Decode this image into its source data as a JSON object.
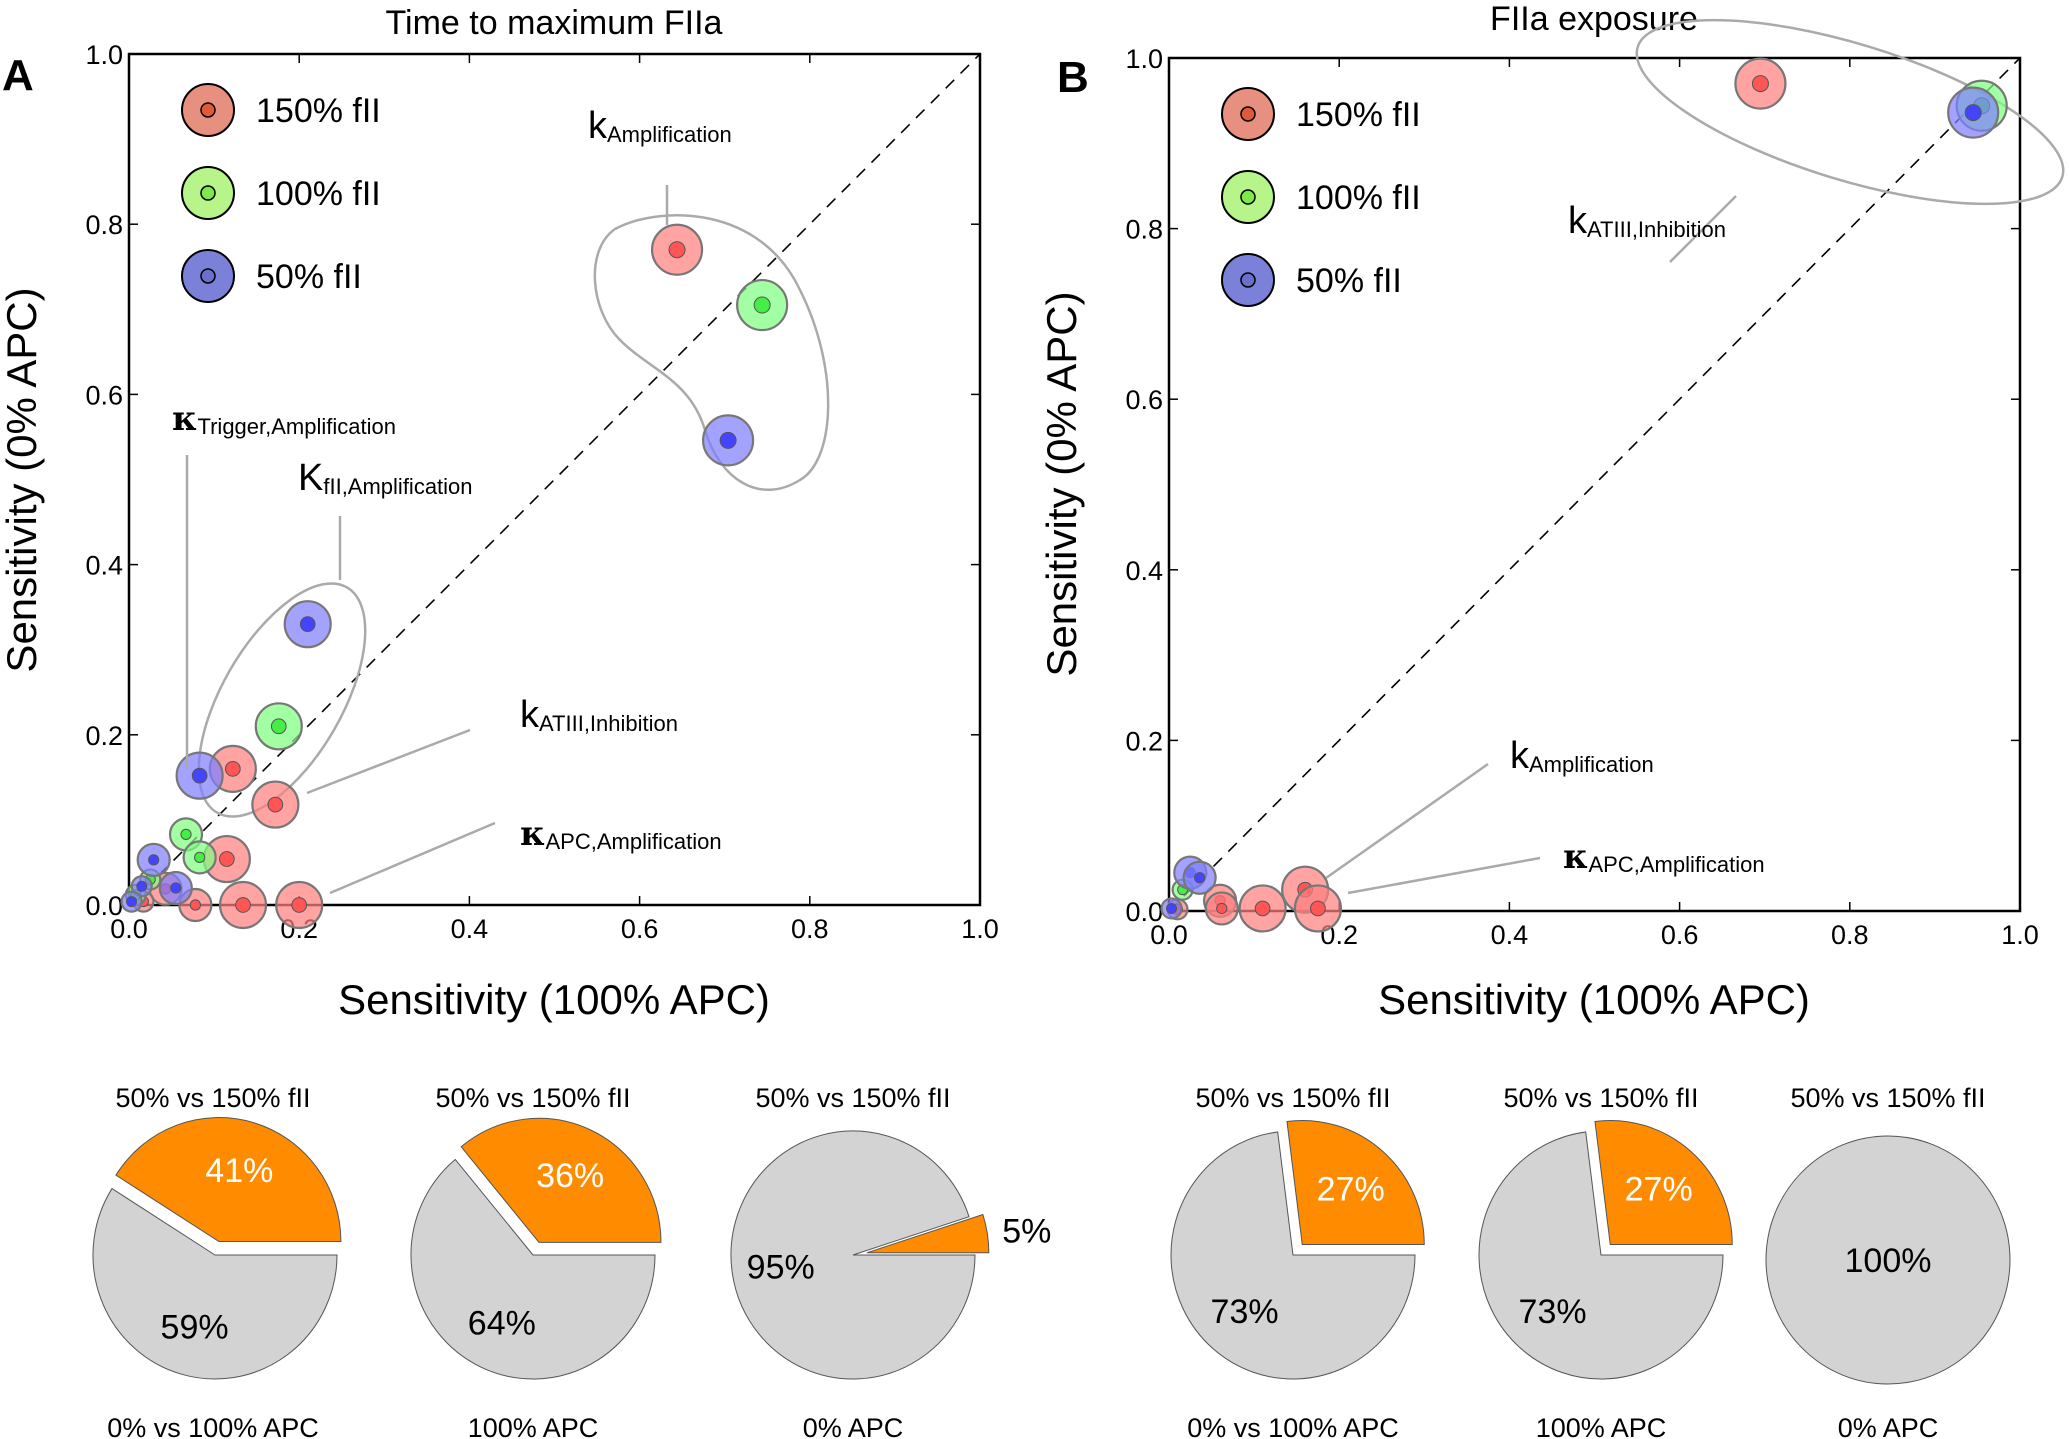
{
  "chart_data": [
    {
      "type": "scatter",
      "panel": "A",
      "title": "Time to maximum FIIa",
      "xlabel": "Sensitivity (100% APC)",
      "ylabel": "Sensitivity (0% APC)",
      "xlim": [
        0.0,
        1.0
      ],
      "ylim": [
        0.0,
        1.0
      ],
      "xticks": [
        "0.0",
        "0.2",
        "0.4",
        "0.6",
        "0.8",
        "1.0"
      ],
      "yticks": [
        "0.0",
        "0.2",
        "0.4",
        "0.6",
        "0.8",
        "1.0"
      ],
      "diagonal": "dashed y=x",
      "legend": {
        "placement": "top-left",
        "entries": [
          {
            "label": "150% fII",
            "color": "#e8907f",
            "inner": "#e05a3a"
          },
          {
            "label": "100% fII",
            "color": "#b7f58a",
            "inner": "#7fe84a"
          },
          {
            "label": "50% fII",
            "color": "#7b80d9",
            "inner": "#6a6fcc"
          }
        ]
      },
      "series": [
        {
          "name": "150% fII",
          "color": "#ff5555",
          "points": [
            [
              0.644,
              0.77
            ],
            [
              0.122,
              0.16
            ],
            [
              0.172,
              0.118
            ],
            [
              0.115,
              0.054
            ],
            [
              0.043,
              0.019
            ],
            [
              0.078,
              0.0
            ],
            [
              0.134,
              0.0
            ],
            [
              0.2,
              0.0
            ],
            [
              0.017,
              0.004
            ]
          ]
        },
        {
          "name": "100% fII",
          "color": "#44ee44",
          "points": [
            [
              0.744,
              0.705
            ],
            [
              0.176,
              0.21
            ],
            [
              0.067,
              0.083
            ],
            [
              0.083,
              0.056
            ],
            [
              0.025,
              0.03
            ],
            [
              0.008,
              0.012
            ]
          ]
        },
        {
          "name": "50% fII",
          "color": "#4444ff",
          "points": [
            [
              0.704,
              0.546
            ],
            [
              0.21,
              0.33
            ],
            [
              0.083,
              0.152
            ],
            [
              0.029,
              0.053
            ],
            [
              0.055,
              0.02
            ],
            [
              0.015,
              0.022
            ],
            [
              0.003,
              0.004
            ]
          ]
        }
      ],
      "annotations": [
        {
          "symbol": "k",
          "sub": "Amplification",
          "bold": false
        },
        {
          "symbol": "κ",
          "sub": "Trigger,Amplification",
          "bold": true
        },
        {
          "symbol": "K",
          "sub": "fII,Amplification",
          "bold": false
        },
        {
          "symbol": "k",
          "sub": "ATIII,Inhibition",
          "bold": false
        },
        {
          "symbol": "κ",
          "sub": "APC,Amplification",
          "bold": true
        }
      ]
    },
    {
      "type": "scatter",
      "panel": "B",
      "title": "FIIa exposure",
      "xlabel": "Sensitivity (100% APC)",
      "ylabel": "Sensitivity (0% APC)",
      "xlim": [
        0.0,
        1.0
      ],
      "ylim": [
        0.0,
        1.0
      ],
      "xticks": [
        "0.0",
        "0.2",
        "0.4",
        "0.6",
        "0.8",
        "1.0"
      ],
      "yticks": [
        "0.0",
        "0.2",
        "0.4",
        "0.6",
        "0.8",
        "1.0"
      ],
      "diagonal": "dashed y=x",
      "legend": {
        "placement": "top-left",
        "entries": [
          {
            "label": "150% fII",
            "color": "#e8907f",
            "inner": "#e05a3a"
          },
          {
            "label": "100% fII",
            "color": "#b7f58a",
            "inner": "#7fe84a"
          },
          {
            "label": "50% fII",
            "color": "#7b80d9",
            "inner": "#6a6fcc"
          }
        ]
      },
      "series": [
        {
          "name": "150% fII",
          "color": "#ff5555",
          "points": [
            [
              0.695,
              0.97
            ],
            [
              0.16,
              0.025
            ],
            [
              0.175,
              0.003
            ],
            [
              0.11,
              0.003
            ],
            [
              0.06,
              0.012
            ],
            [
              0.062,
              0.003
            ],
            [
              0.01,
              0.002
            ]
          ]
        },
        {
          "name": "100% fII",
          "color": "#44ee44",
          "points": [
            [
              0.955,
              0.944
            ],
            [
              0.016,
              0.025
            ]
          ]
        },
        {
          "name": "50% fII",
          "color": "#4444ff",
          "points": [
            [
              0.945,
              0.936
            ],
            [
              0.025,
              0.045
            ],
            [
              0.036,
              0.039
            ],
            [
              0.003,
              0.003
            ]
          ]
        }
      ],
      "annotations": [
        {
          "symbol": "k",
          "sub": "ATIII,Inhibition",
          "bold": false
        },
        {
          "symbol": "k",
          "sub": "Amplification",
          "bold": false
        },
        {
          "symbol": "κ",
          "sub": "APC,Amplification",
          "bold": true
        }
      ]
    },
    {
      "type": "pie",
      "panel": "A",
      "pies": [
        {
          "top": "50% vs 150% fII",
          "bottom": "0% vs 100% APC",
          "slices": [
            {
              "label": "41%",
              "value": 41,
              "color": "#ff8c00"
            },
            {
              "label": "59%",
              "value": 59,
              "color": "#d3d3d3"
            }
          ]
        },
        {
          "top": "50% vs 150% fII",
          "bottom": "100% APC",
          "slices": [
            {
              "label": "36%",
              "value": 36,
              "color": "#ff8c00"
            },
            {
              "label": "64%",
              "value": 64,
              "color": "#d3d3d3"
            }
          ]
        },
        {
          "top": "50% vs 150% fII",
          "bottom": "0% APC",
          "slices": [
            {
              "label": "5%",
              "value": 5,
              "color": "#ff8c00"
            },
            {
              "label": "95%",
              "value": 95,
              "color": "#d3d3d3"
            }
          ]
        }
      ]
    },
    {
      "type": "pie",
      "panel": "B",
      "pies": [
        {
          "top": "50% vs 150% fII",
          "bottom": "0% vs 100% APC",
          "slices": [
            {
              "label": "27%",
              "value": 27,
              "color": "#ff8c00"
            },
            {
              "label": "73%",
              "value": 73,
              "color": "#d3d3d3"
            }
          ]
        },
        {
          "top": "50% vs 150% fII",
          "bottom": "100% APC",
          "slices": [
            {
              "label": "27%",
              "value": 27,
              "color": "#ff8c00"
            },
            {
              "label": "73%",
              "value": 73,
              "color": "#d3d3d3"
            }
          ]
        },
        {
          "top": "50% vs 150% fII",
          "bottom": "0% APC",
          "slices": [
            {
              "label": "100%",
              "value": 100,
              "color": "#d3d3d3"
            }
          ]
        }
      ]
    }
  ],
  "labels": {
    "panel_a_letter": "A",
    "panel_b_letter": "B"
  }
}
